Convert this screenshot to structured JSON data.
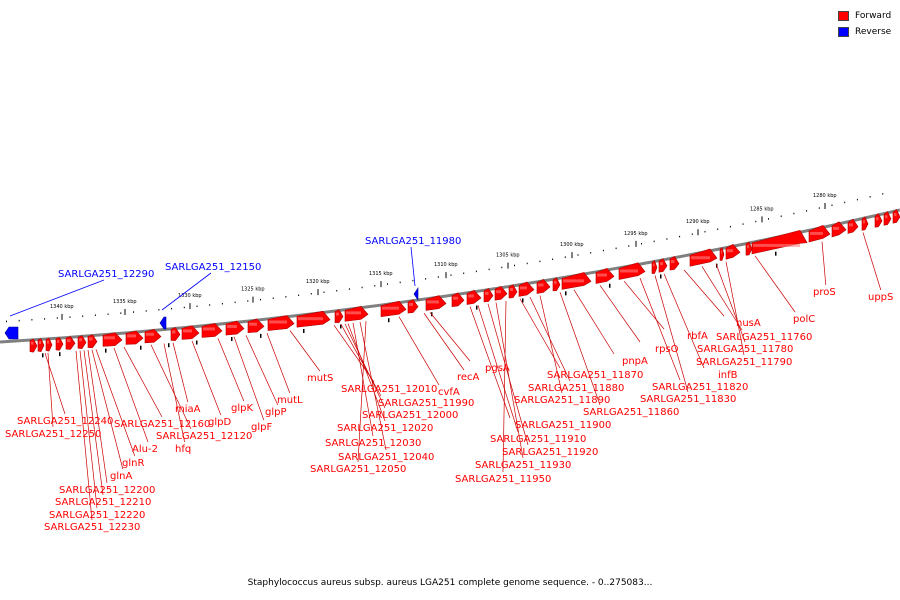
{
  "legend": [
    {
      "label": "Forward",
      "color": "#ff0000"
    },
    {
      "label": "Reverse",
      "color": "#0000ff"
    }
  ],
  "caption": "Staphylococcus aureus subsp. aureus LGA251 complete genome sequence. - 0..275083...",
  "colors": {
    "forward": "#ff0000",
    "reverse": "#0000ff",
    "backbone": "#808080",
    "leader": "#cc0000"
  },
  "scale": {
    "ticks": [
      "1340 kbp",
      "1335 kbp",
      "1330 kbp",
      "1325 kbp",
      "1320 kbp",
      "1315 kbp",
      "1310 kbp",
      "1305 kbp",
      "1300 kbp",
      "1295 kbp",
      "1290 kbp",
      "1285 kbp",
      "1280 kbp"
    ]
  },
  "labels": {
    "reverse": [
      "SARLGA251_12290",
      "SARLGA251_12150",
      "SARLGA251_11980"
    ],
    "forward": [
      "SARLGA251_12240",
      "SARLGA251_12250",
      "glnR",
      "glnA",
      "SARLGA251_12200",
      "SARLGA251_12210",
      "SARLGA251_12220",
      "SARLGA251_12230",
      "Alu-2",
      "SARLGA251_12160",
      "SARLGA251_12120",
      "hfq",
      "miaA",
      "glpD",
      "glpK",
      "glpF",
      "glpP",
      "mutL",
      "mutS",
      "SARLGA251_12010",
      "SARLGA251_11990",
      "SARLGA251_12000",
      "SARLGA251_12020",
      "SARLGA251_12030",
      "SARLGA251_12040",
      "SARLGA251_12050",
      "cvfA",
      "recA",
      "pgsA",
      "SARLGA251_11900",
      "SARLGA251_11910",
      "SARLGA251_11920",
      "SARLGA251_11930",
      "SARLGA251_11950",
      "SARLGA251_11870",
      "SARLGA251_11880",
      "SARLGA251_11890",
      "SARLGA251_11860",
      "pnpA",
      "rpsO",
      "rbfA",
      "SARLGA251_11820",
      "SARLGA251_11830",
      "infB",
      "nusA",
      "SARLGA251_11760",
      "SARLGA251_11780",
      "SARLGA251_11790",
      "polC",
      "proS",
      "uppS"
    ]
  }
}
